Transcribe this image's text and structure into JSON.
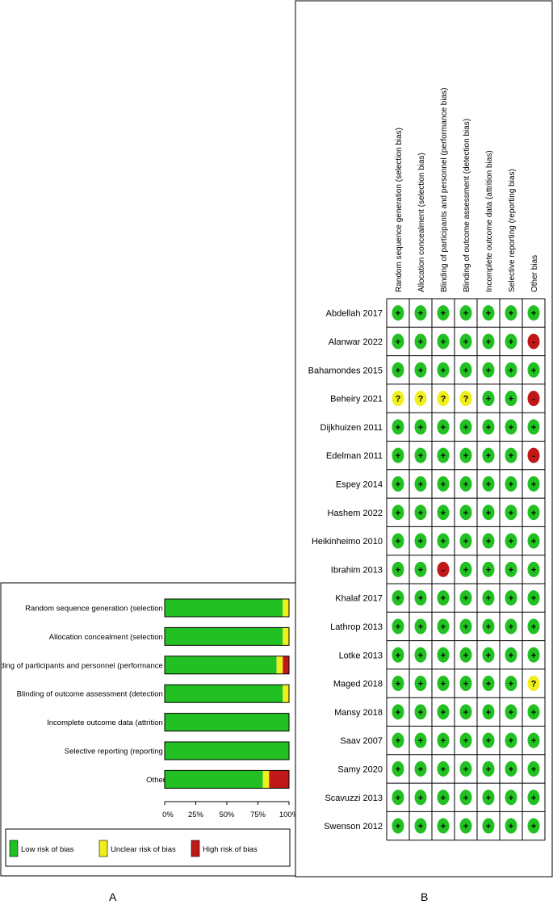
{
  "panels": {
    "a_label": "A",
    "b_label": "B"
  },
  "colors": {
    "low": "#22c022",
    "unclear": "#f0ef1c",
    "high": "#c01818"
  },
  "chart_data": [
    {
      "type": "bar",
      "orientation": "horizontal",
      "stacked": true,
      "categories": [
        "Random sequence generation (selection bias)",
        "Allocation concealment (selection bias)",
        "Blinding of participants and personnel (performance bias)",
        "Blinding of outcome assessment (detection bias)",
        "Incomplete outcome data (attrition bias)",
        "Selective reporting (reporting bias)",
        "Other bias"
      ],
      "series": [
        {
          "name": "Low risk of bias",
          "values": [
            95,
            95,
            90,
            95,
            100,
            100,
            79
          ]
        },
        {
          "name": "Unclear risk of bias",
          "values": [
            5,
            5,
            5,
            5,
            0,
            0,
            5
          ]
        },
        {
          "name": "High risk of bias",
          "values": [
            0,
            0,
            5,
            0,
            0,
            0,
            16
          ]
        }
      ],
      "xticks": [
        "0%",
        "25%",
        "50%",
        "75%",
        "100%"
      ],
      "xlim": [
        0,
        100
      ],
      "legend_position": "bottom"
    },
    {
      "type": "table",
      "columns": [
        "Random sequence generation (selection bias)",
        "Allocation concealment (selection bias)",
        "Blinding of participants and personnel (performance bias)",
        "Blinding of outcome assessment (detection bias)",
        "Incomplete outcome data (attrition bias)",
        "Selective reporting (reporting bias)",
        "Other bias"
      ],
      "rows": [
        {
          "study": "Abdellah 2017",
          "judgements": [
            "+",
            "+",
            "+",
            "+",
            "+",
            "+",
            "+"
          ]
        },
        {
          "study": "Alanwar 2022",
          "judgements": [
            "+",
            "+",
            "+",
            "+",
            "+",
            "+",
            "-"
          ]
        },
        {
          "study": "Bahamondes 2015",
          "judgements": [
            "+",
            "+",
            "+",
            "+",
            "+",
            "+",
            "+"
          ]
        },
        {
          "study": "Beheiry 2021",
          "judgements": [
            "?",
            "?",
            "?",
            "?",
            "+",
            "+",
            "-"
          ]
        },
        {
          "study": "Dijkhuizen 2011",
          "judgements": [
            "+",
            "+",
            "+",
            "+",
            "+",
            "+",
            "+"
          ]
        },
        {
          "study": "Edelman 2011",
          "judgements": [
            "+",
            "+",
            "+",
            "+",
            "+",
            "+",
            "-"
          ]
        },
        {
          "study": "Espey 2014",
          "judgements": [
            "+",
            "+",
            "+",
            "+",
            "+",
            "+",
            "+"
          ]
        },
        {
          "study": "Hashem 2022",
          "judgements": [
            "+",
            "+",
            "+",
            "+",
            "+",
            "+",
            "+"
          ]
        },
        {
          "study": "Heikinheimo 2010",
          "judgements": [
            "+",
            "+",
            "+",
            "+",
            "+",
            "+",
            "+"
          ]
        },
        {
          "study": "Ibrahim 2013",
          "judgements": [
            "+",
            "+",
            "-",
            "+",
            "+",
            "+",
            "+"
          ]
        },
        {
          "study": "Khalaf 2017",
          "judgements": [
            "+",
            "+",
            "+",
            "+",
            "+",
            "+",
            "+"
          ]
        },
        {
          "study": "Lathrop 2013",
          "judgements": [
            "+",
            "+",
            "+",
            "+",
            "+",
            "+",
            "+"
          ]
        },
        {
          "study": "Lotke 2013",
          "judgements": [
            "+",
            "+",
            "+",
            "+",
            "+",
            "+",
            "+"
          ]
        },
        {
          "study": "Maged 2018",
          "judgements": [
            "+",
            "+",
            "+",
            "+",
            "+",
            "+",
            "?"
          ]
        },
        {
          "study": "Mansy 2018",
          "judgements": [
            "+",
            "+",
            "+",
            "+",
            "+",
            "+",
            "+"
          ]
        },
        {
          "study": "Saav 2007",
          "judgements": [
            "+",
            "+",
            "+",
            "+",
            "+",
            "+",
            "+"
          ]
        },
        {
          "study": "Samy 2020",
          "judgements": [
            "+",
            "+",
            "+",
            "+",
            "+",
            "+",
            "+"
          ]
        },
        {
          "study": "Scavuzzi 2013",
          "judgements": [
            "+",
            "+",
            "+",
            "+",
            "+",
            "+",
            "+"
          ]
        },
        {
          "study": "Swenson 2012",
          "judgements": [
            "+",
            "+",
            "+",
            "+",
            "+",
            "+",
            "+"
          ]
        }
      ]
    }
  ]
}
